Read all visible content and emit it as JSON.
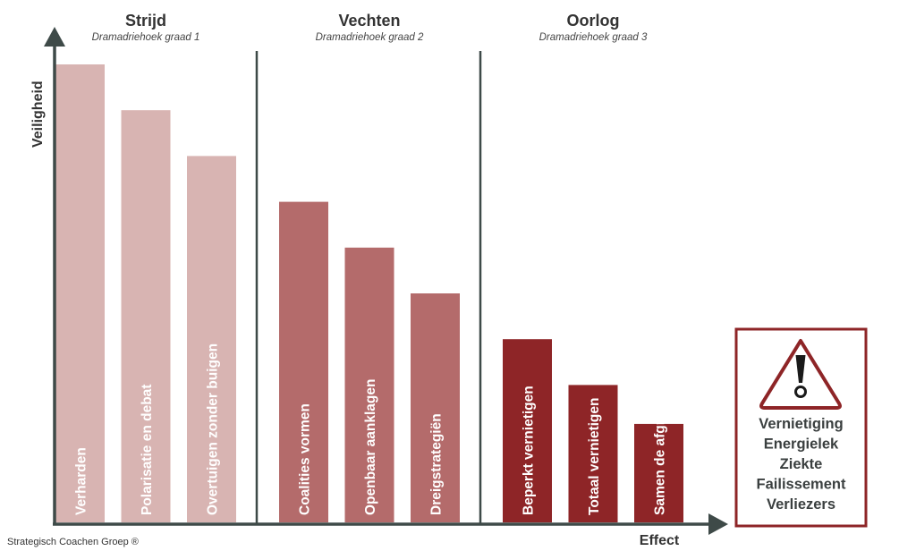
{
  "chart_data": {
    "type": "bar",
    "ylabel": "Veiligheid",
    "xlabel": "Effect",
    "groups": [
      {
        "title": "Strijd",
        "subtitle": "Dramadriehoek graad 1",
        "color": "#d8b4b2",
        "categories": [
          "Verharden",
          "Polarisatie en debat",
          "Overtuigen zonder buigen"
        ],
        "values": [
          100,
          90,
          80
        ]
      },
      {
        "title": "Vechten",
        "subtitle": "Dramadriehoek graad 2",
        "color": "#b46b6b",
        "categories": [
          "Coalities vormen",
          "Openbaar aanklagen",
          "Dreigstrategiën"
        ],
        "values": [
          70,
          60,
          50
        ]
      },
      {
        "title": "Oorlog",
        "subtitle": "Dramadriehoek graad 3",
        "color": "#8e2527",
        "categories": [
          "Beperkt vernietigen",
          "Totaal vernietigen",
          "Samen de afgrond in"
        ],
        "values": [
          40,
          30,
          21.5
        ]
      }
    ],
    "ylim": [
      0,
      100
    ],
    "grid": false,
    "legend": false
  },
  "warning": {
    "icon": "warning-triangle-icon",
    "border_color": "#8e2527",
    "lines": [
      "Vernietiging",
      "Energielek",
      "Ziekte",
      "Failissement",
      "Verliezers"
    ]
  },
  "footer": "Strategisch Coachen Groep ®",
  "colors": {
    "axis": "#3e4a48"
  }
}
